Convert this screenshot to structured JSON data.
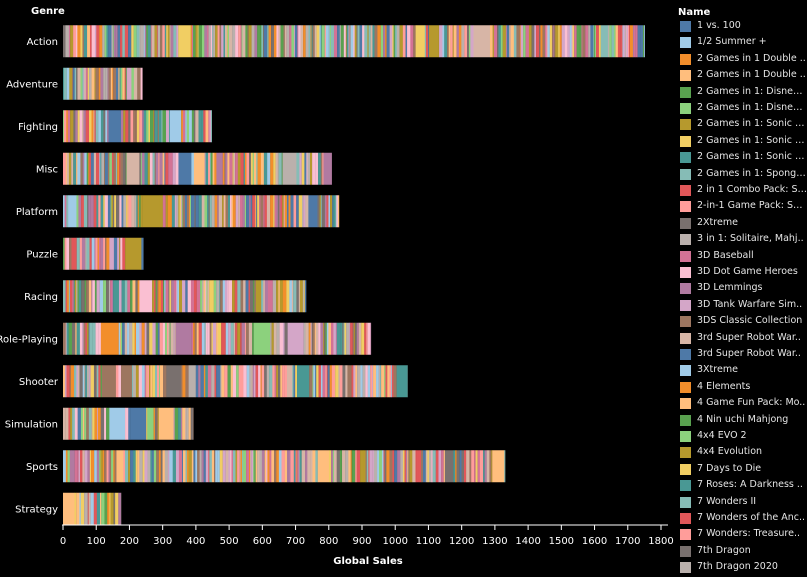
{
  "chart_data": {
    "type": "bar",
    "orientation": "horizontal",
    "stacked": true,
    "ylabel": "Genre",
    "xlabel": "Global Sales",
    "categories": [
      "Action",
      "Adventure",
      "Fighting",
      "Misc",
      "Platform",
      "Puzzle",
      "Racing",
      "Role-Playing",
      "Shooter",
      "Simulation",
      "Sports",
      "Strategy"
    ],
    "values": [
      1751,
      239,
      448,
      809,
      831,
      242,
      732,
      927,
      1037,
      392,
      1331,
      175
    ],
    "xlim": [
      0,
      1800
    ],
    "xticks": [
      "0",
      "100",
      "200",
      "300",
      "400",
      "500",
      "600",
      "700",
      "800",
      "900",
      "1000",
      "1100",
      "1200",
      "1300",
      "1400",
      "1500",
      "1600",
      "1700",
      "1800"
    ],
    "grid": false,
    "legend_placement": "right",
    "legend_title": "Name",
    "legend_entries": [
      {
        "label": "1 vs. 100",
        "color": "#4e79a7"
      },
      {
        "label": "1/2 Summer +",
        "color": "#a0cbe8"
      },
      {
        "label": "2 Games in 1 Double ..",
        "color": "#f28e2b"
      },
      {
        "label": "2 Games in 1 Double ..",
        "color": "#ffbe7d"
      },
      {
        "label": "2 Games in 1: Disney ..",
        "color": "#59a14f"
      },
      {
        "label": "2 Games in 1: Disney'..",
        "color": "#8cd17d"
      },
      {
        "label": "2 Games in 1: Sonic A..",
        "color": "#b6992d"
      },
      {
        "label": "2 Games in 1: Sonic B..",
        "color": "#f1ce63"
      },
      {
        "label": "2 Games in 1: Sonic Pi..",
        "color": "#499894"
      },
      {
        "label": "2 Games in 1: Sponge..",
        "color": "#86bcb6"
      },
      {
        "label": "2 in 1 Combo Pack: So..",
        "color": "#e15759"
      },
      {
        "label": "2-in-1 Game Pack: Spi..",
        "color": "#ff9d9a"
      },
      {
        "label": "2Xtreme",
        "color": "#79706e"
      },
      {
        "label": "3 in 1: Solitaire, Mahj..",
        "color": "#bab0ac"
      },
      {
        "label": "3D Baseball",
        "color": "#d37295"
      },
      {
        "label": "3D Dot Game Heroes",
        "color": "#fabfd2"
      },
      {
        "label": "3D Lemmings",
        "color": "#b07aa1"
      },
      {
        "label": "3D Tank Warfare Sim..",
        "color": "#d4a6c8"
      },
      {
        "label": "3DS Classic Collection",
        "color": "#9d7660"
      },
      {
        "label": "3rd Super Robot War..",
        "color": "#d7b5a6"
      },
      {
        "label": "3rd Super Robot War..",
        "color": "#4e79a7"
      },
      {
        "label": "3Xtreme",
        "color": "#a0cbe8"
      },
      {
        "label": "4 Elements",
        "color": "#f28e2b"
      },
      {
        "label": "4 Game Fun Pack: Mo..",
        "color": "#ffbe7d"
      },
      {
        "label": "4 Nin uchi Mahjong",
        "color": "#59a14f"
      },
      {
        "label": "4x4 EVO 2",
        "color": "#8cd17d"
      },
      {
        "label": "4x4 Evolution",
        "color": "#b6992d"
      },
      {
        "label": "7 Days to Die",
        "color": "#f1ce63"
      },
      {
        "label": "7 Roses: A Darkness ..",
        "color": "#499894"
      },
      {
        "label": "7 Wonders II",
        "color": "#86bcb6"
      },
      {
        "label": "7 Wonders of the Anc..",
        "color": "#e15759"
      },
      {
        "label": "7 Wonders: Treasure..",
        "color": "#ff9d9a"
      },
      {
        "label": "7th Dragon",
        "color": "#79706e"
      },
      {
        "label": "7th Dragon 2020",
        "color": "#bab0ac"
      }
    ]
  },
  "palette": [
    "#4e79a7",
    "#a0cbe8",
    "#f28e2b",
    "#ffbe7d",
    "#59a14f",
    "#8cd17d",
    "#b6992d",
    "#f1ce63",
    "#499894",
    "#86bcb6",
    "#e15759",
    "#ff9d9a",
    "#79706e",
    "#bab0ac",
    "#d37295",
    "#fabfd2",
    "#b07aa1",
    "#d4a6c8",
    "#9d7660",
    "#d7b5a6"
  ],
  "colors": {
    "background": "#000000",
    "axis": "#ffffff",
    "text": "#ffffff"
  }
}
